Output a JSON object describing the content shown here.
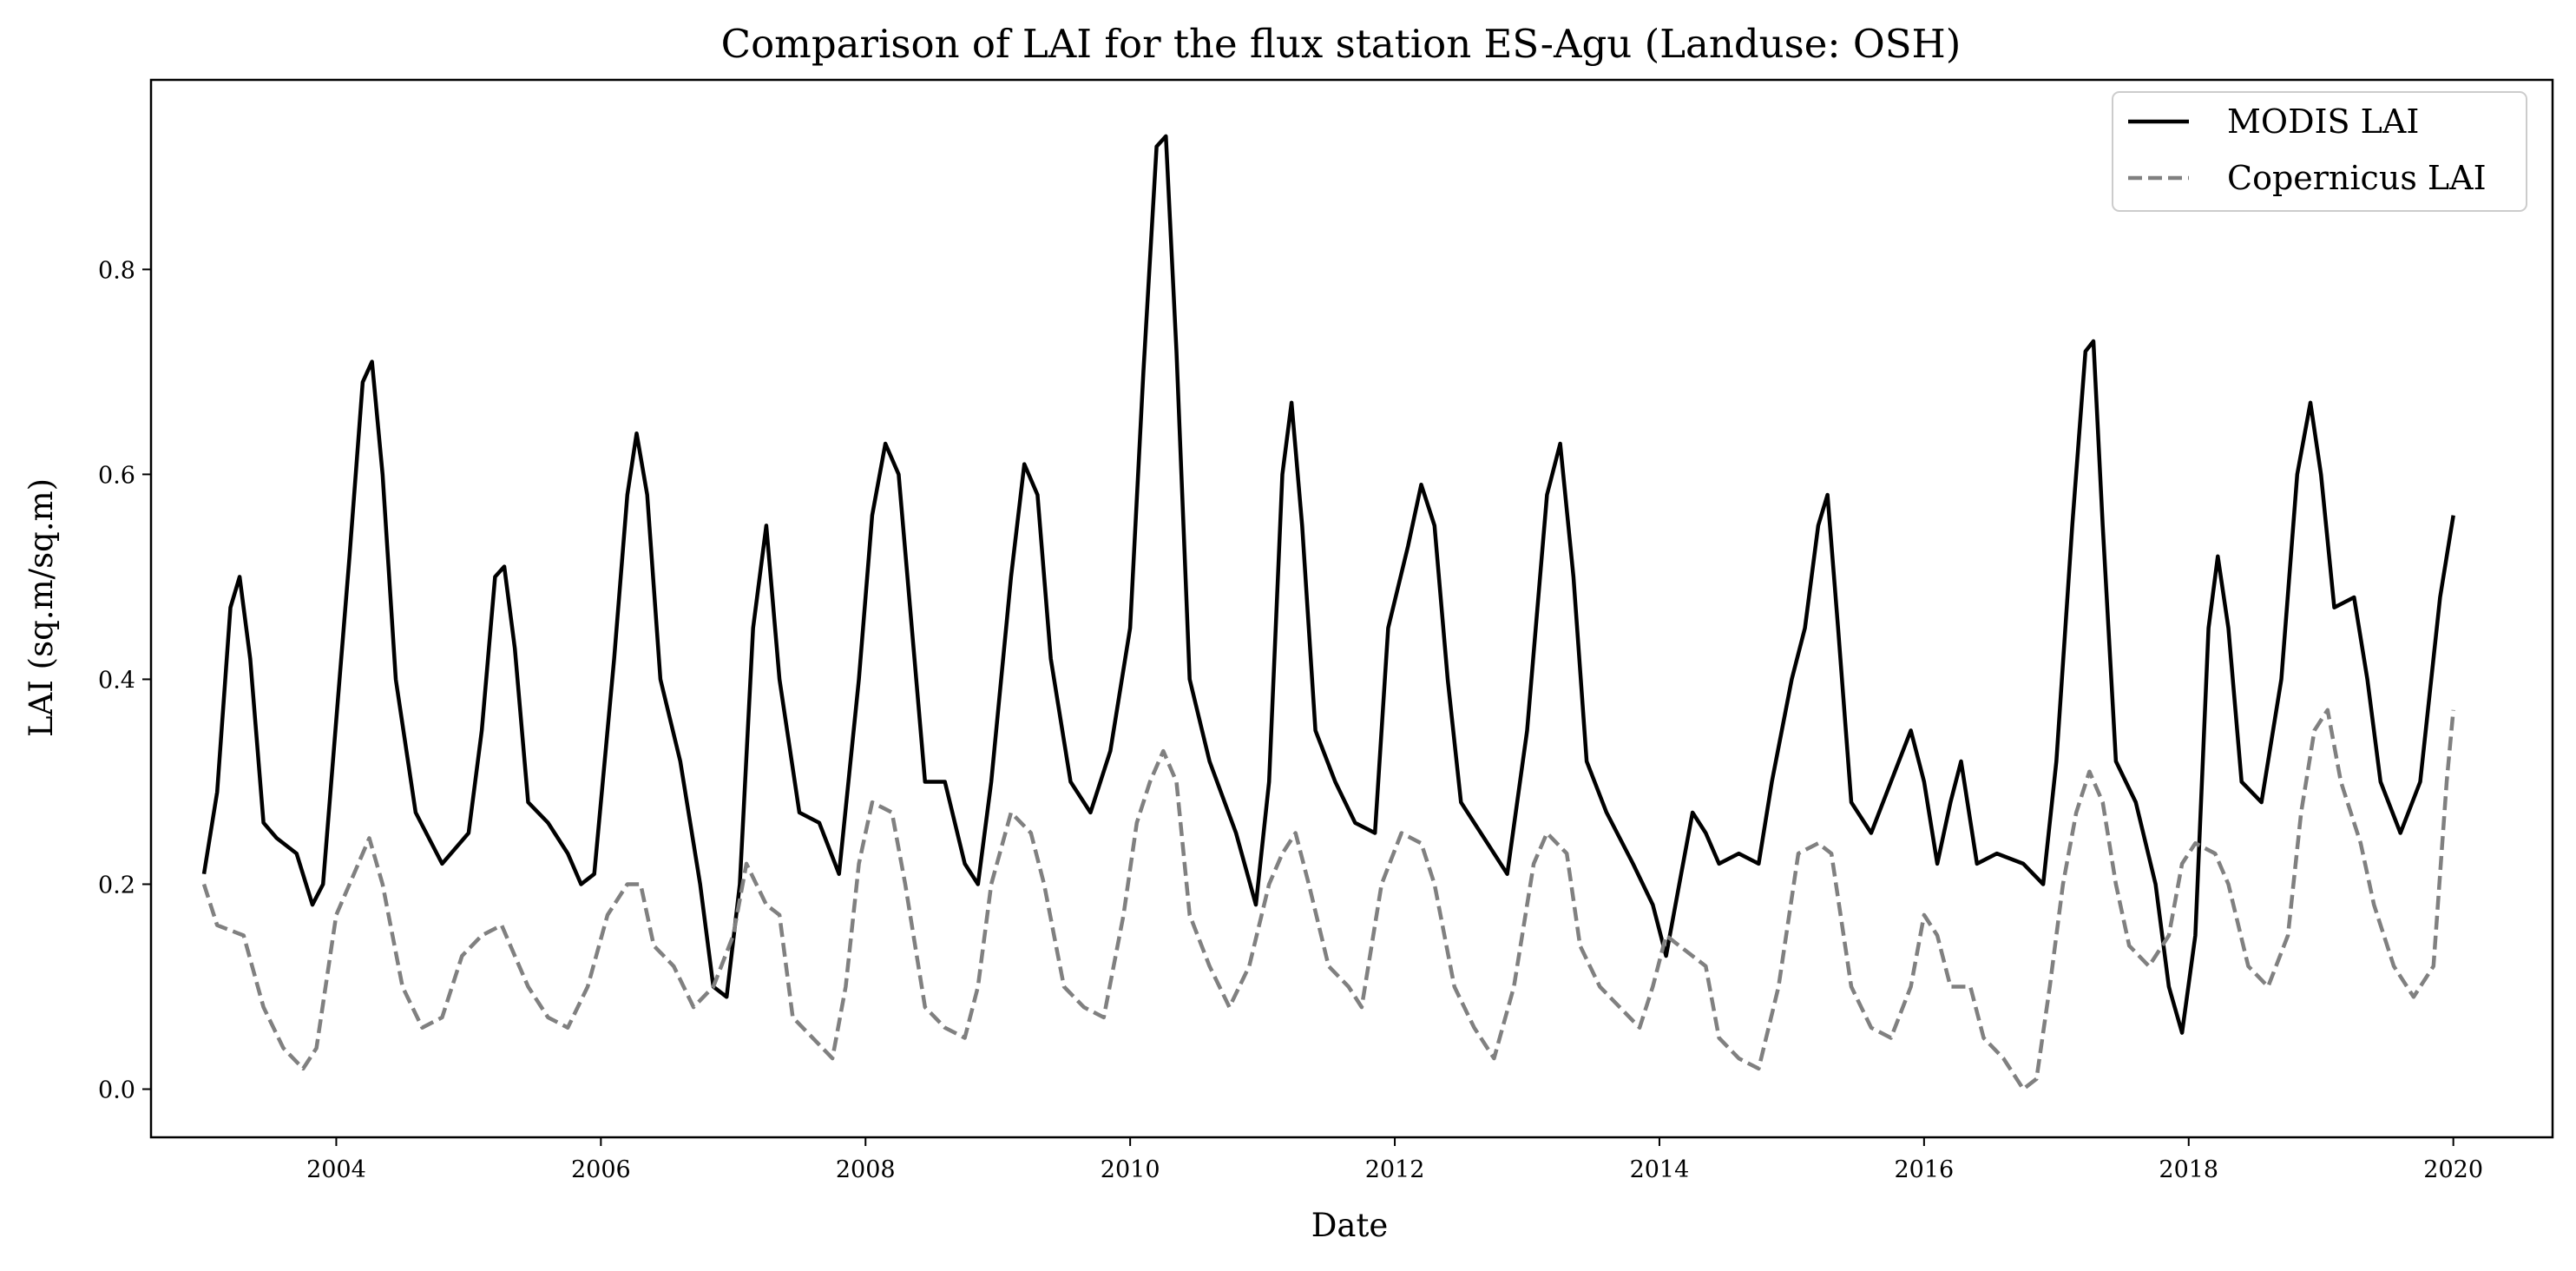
{
  "chart_data": {
    "type": "line",
    "title": "Comparison of LAI for the flux station ES-Agu (Landuse: OSH)",
    "xlabel": "Date",
    "ylabel": "LAI (sq.m/sq.m)",
    "x_axis": "date",
    "xlim": [
      2002.6,
      2020.75
    ],
    "ylim": [
      -0.047,
      0.985
    ],
    "x_ticks": [
      2004,
      2006,
      2008,
      2010,
      2012,
      2014,
      2016,
      2018,
      2020
    ],
    "y_ticks": [
      0.0,
      0.2,
      0.4,
      0.6,
      0.8
    ],
    "y_tick_labels": [
      "0.0",
      "0.2",
      "0.4",
      "0.6",
      "0.8"
    ],
    "grid": false,
    "legend_position": "top-right",
    "series": [
      {
        "name": "MODIS LAI",
        "color": "#000000",
        "style": "solid",
        "points": [
          [
            2003.0,
            0.21
          ],
          [
            2003.1,
            0.29
          ],
          [
            2003.2,
            0.47
          ],
          [
            2003.27,
            0.5
          ],
          [
            2003.35,
            0.42
          ],
          [
            2003.45,
            0.26
          ],
          [
            2003.55,
            0.245
          ],
          [
            2003.7,
            0.23
          ],
          [
            2003.82,
            0.18
          ],
          [
            2003.9,
            0.2
          ],
          [
            2004.0,
            0.36
          ],
          [
            2004.1,
            0.52
          ],
          [
            2004.2,
            0.69
          ],
          [
            2004.27,
            0.71
          ],
          [
            2004.35,
            0.6
          ],
          [
            2004.45,
            0.4
          ],
          [
            2004.6,
            0.27
          ],
          [
            2004.8,
            0.22
          ],
          [
            2005.0,
            0.25
          ],
          [
            2005.1,
            0.35
          ],
          [
            2005.2,
            0.5
          ],
          [
            2005.27,
            0.51
          ],
          [
            2005.35,
            0.43
          ],
          [
            2005.45,
            0.28
          ],
          [
            2005.6,
            0.26
          ],
          [
            2005.75,
            0.23
          ],
          [
            2005.85,
            0.2
          ],
          [
            2005.95,
            0.21
          ],
          [
            2006.1,
            0.42
          ],
          [
            2006.2,
            0.58
          ],
          [
            2006.27,
            0.64
          ],
          [
            2006.35,
            0.58
          ],
          [
            2006.45,
            0.4
          ],
          [
            2006.6,
            0.32
          ],
          [
            2006.75,
            0.2
          ],
          [
            2006.85,
            0.1
          ],
          [
            2006.95,
            0.09
          ],
          [
            2007.05,
            0.2
          ],
          [
            2007.15,
            0.45
          ],
          [
            2007.25,
            0.55
          ],
          [
            2007.35,
            0.4
          ],
          [
            2007.5,
            0.27
          ],
          [
            2007.65,
            0.26
          ],
          [
            2007.8,
            0.21
          ],
          [
            2007.95,
            0.4
          ],
          [
            2008.05,
            0.56
          ],
          [
            2008.15,
            0.63
          ],
          [
            2008.25,
            0.6
          ],
          [
            2008.35,
            0.45
          ],
          [
            2008.45,
            0.3
          ],
          [
            2008.6,
            0.3
          ],
          [
            2008.75,
            0.22
          ],
          [
            2008.85,
            0.2
          ],
          [
            2008.95,
            0.3
          ],
          [
            2009.1,
            0.5
          ],
          [
            2009.2,
            0.61
          ],
          [
            2009.3,
            0.58
          ],
          [
            2009.4,
            0.42
          ],
          [
            2009.55,
            0.3
          ],
          [
            2009.7,
            0.27
          ],
          [
            2009.85,
            0.33
          ],
          [
            2010.0,
            0.45
          ],
          [
            2010.1,
            0.7
          ],
          [
            2010.2,
            0.92
          ],
          [
            2010.27,
            0.93
          ],
          [
            2010.35,
            0.72
          ],
          [
            2010.45,
            0.4
          ],
          [
            2010.6,
            0.32
          ],
          [
            2010.8,
            0.25
          ],
          [
            2010.95,
            0.18
          ],
          [
            2011.05,
            0.3
          ],
          [
            2011.15,
            0.6
          ],
          [
            2011.22,
            0.67
          ],
          [
            2011.3,
            0.55
          ],
          [
            2011.4,
            0.35
          ],
          [
            2011.55,
            0.3
          ],
          [
            2011.7,
            0.26
          ],
          [
            2011.85,
            0.25
          ],
          [
            2011.95,
            0.45
          ],
          [
            2012.1,
            0.53
          ],
          [
            2012.2,
            0.59
          ],
          [
            2012.3,
            0.55
          ],
          [
            2012.4,
            0.4
          ],
          [
            2012.5,
            0.28
          ],
          [
            2012.7,
            0.24
          ],
          [
            2012.85,
            0.21
          ],
          [
            2013.0,
            0.35
          ],
          [
            2013.15,
            0.58
          ],
          [
            2013.25,
            0.63
          ],
          [
            2013.35,
            0.5
          ],
          [
            2013.45,
            0.32
          ],
          [
            2013.6,
            0.27
          ],
          [
            2013.8,
            0.22
          ],
          [
            2013.95,
            0.18
          ],
          [
            2014.05,
            0.13
          ],
          [
            2014.15,
            0.2
          ],
          [
            2014.25,
            0.27
          ],
          [
            2014.35,
            0.25
          ],
          [
            2014.45,
            0.22
          ],
          [
            2014.6,
            0.23
          ],
          [
            2014.75,
            0.22
          ],
          [
            2014.85,
            0.3
          ],
          [
            2015.0,
            0.4
          ],
          [
            2015.1,
            0.45
          ],
          [
            2015.2,
            0.55
          ],
          [
            2015.27,
            0.58
          ],
          [
            2015.35,
            0.45
          ],
          [
            2015.45,
            0.28
          ],
          [
            2015.6,
            0.25
          ],
          [
            2015.75,
            0.3
          ],
          [
            2015.9,
            0.35
          ],
          [
            2016.0,
            0.3
          ],
          [
            2016.1,
            0.22
          ],
          [
            2016.2,
            0.28
          ],
          [
            2016.28,
            0.32
          ],
          [
            2016.4,
            0.22
          ],
          [
            2016.55,
            0.23
          ],
          [
            2016.75,
            0.22
          ],
          [
            2016.9,
            0.2
          ],
          [
            2017.0,
            0.32
          ],
          [
            2017.12,
            0.55
          ],
          [
            2017.22,
            0.72
          ],
          [
            2017.28,
            0.73
          ],
          [
            2017.35,
            0.55
          ],
          [
            2017.45,
            0.32
          ],
          [
            2017.6,
            0.28
          ],
          [
            2017.75,
            0.2
          ],
          [
            2017.85,
            0.1
          ],
          [
            2017.95,
            0.055
          ],
          [
            2018.05,
            0.15
          ],
          [
            2018.15,
            0.45
          ],
          [
            2018.22,
            0.52
          ],
          [
            2018.3,
            0.45
          ],
          [
            2018.4,
            0.3
          ],
          [
            2018.55,
            0.28
          ],
          [
            2018.7,
            0.4
          ],
          [
            2018.82,
            0.6
          ],
          [
            2018.92,
            0.67
          ],
          [
            2019.0,
            0.6
          ],
          [
            2019.1,
            0.47
          ],
          [
            2019.25,
            0.48
          ],
          [
            2019.35,
            0.4
          ],
          [
            2019.45,
            0.3
          ],
          [
            2019.6,
            0.25
          ],
          [
            2019.75,
            0.3
          ],
          [
            2019.9,
            0.48
          ],
          [
            2020.0,
            0.56
          ]
        ]
      },
      {
        "name": "Copernicus LAI",
        "color": "#808080",
        "style": "dashed",
        "points": [
          [
            2003.0,
            0.2
          ],
          [
            2003.1,
            0.16
          ],
          [
            2003.3,
            0.15
          ],
          [
            2003.45,
            0.08
          ],
          [
            2003.6,
            0.04
          ],
          [
            2003.75,
            0.02
          ],
          [
            2003.85,
            0.04
          ],
          [
            2004.0,
            0.17
          ],
          [
            2004.1,
            0.2
          ],
          [
            2004.25,
            0.245
          ],
          [
            2004.35,
            0.2
          ],
          [
            2004.5,
            0.1
          ],
          [
            2004.65,
            0.06
          ],
          [
            2004.8,
            0.07
          ],
          [
            2004.95,
            0.13
          ],
          [
            2005.1,
            0.15
          ],
          [
            2005.25,
            0.16
          ],
          [
            2005.35,
            0.13
          ],
          [
            2005.45,
            0.1
          ],
          [
            2005.6,
            0.07
          ],
          [
            2005.75,
            0.06
          ],
          [
            2005.9,
            0.1
          ],
          [
            2006.05,
            0.17
          ],
          [
            2006.2,
            0.2
          ],
          [
            2006.3,
            0.2
          ],
          [
            2006.4,
            0.14
          ],
          [
            2006.55,
            0.12
          ],
          [
            2006.7,
            0.08
          ],
          [
            2006.85,
            0.1
          ],
          [
            2007.0,
            0.15
          ],
          [
            2007.1,
            0.22
          ],
          [
            2007.25,
            0.18
          ],
          [
            2007.35,
            0.17
          ],
          [
            2007.45,
            0.07
          ],
          [
            2007.6,
            0.05
          ],
          [
            2007.75,
            0.03
          ],
          [
            2007.85,
            0.1
          ],
          [
            2007.95,
            0.22
          ],
          [
            2008.05,
            0.28
          ],
          [
            2008.2,
            0.27
          ],
          [
            2008.3,
            0.2
          ],
          [
            2008.45,
            0.08
          ],
          [
            2008.6,
            0.06
          ],
          [
            2008.75,
            0.05
          ],
          [
            2008.85,
            0.1
          ],
          [
            2008.95,
            0.2
          ],
          [
            2009.1,
            0.27
          ],
          [
            2009.25,
            0.25
          ],
          [
            2009.35,
            0.2
          ],
          [
            2009.5,
            0.1
          ],
          [
            2009.65,
            0.08
          ],
          [
            2009.8,
            0.07
          ],
          [
            2009.95,
            0.17
          ],
          [
            2010.05,
            0.26
          ],
          [
            2010.15,
            0.3
          ],
          [
            2010.25,
            0.33
          ],
          [
            2010.35,
            0.3
          ],
          [
            2010.45,
            0.17
          ],
          [
            2010.6,
            0.12
          ],
          [
            2010.75,
            0.08
          ],
          [
            2010.9,
            0.12
          ],
          [
            2011.05,
            0.2
          ],
          [
            2011.15,
            0.23
          ],
          [
            2011.25,
            0.25
          ],
          [
            2011.35,
            0.2
          ],
          [
            2011.5,
            0.12
          ],
          [
            2011.65,
            0.1
          ],
          [
            2011.75,
            0.08
          ],
          [
            2011.9,
            0.2
          ],
          [
            2012.05,
            0.25
          ],
          [
            2012.2,
            0.24
          ],
          [
            2012.3,
            0.2
          ],
          [
            2012.45,
            0.1
          ],
          [
            2012.6,
            0.06
          ],
          [
            2012.75,
            0.03
          ],
          [
            2012.9,
            0.1
          ],
          [
            2013.05,
            0.22
          ],
          [
            2013.15,
            0.25
          ],
          [
            2013.3,
            0.23
          ],
          [
            2013.4,
            0.14
          ],
          [
            2013.55,
            0.1
          ],
          [
            2013.7,
            0.08
          ],
          [
            2013.85,
            0.06
          ],
          [
            2013.95,
            0.1
          ],
          [
            2014.05,
            0.15
          ],
          [
            2014.15,
            0.14
          ],
          [
            2014.35,
            0.12
          ],
          [
            2014.45,
            0.05
          ],
          [
            2014.6,
            0.03
          ],
          [
            2014.75,
            0.02
          ],
          [
            2014.9,
            0.1
          ],
          [
            2015.05,
            0.23
          ],
          [
            2015.2,
            0.24
          ],
          [
            2015.3,
            0.23
          ],
          [
            2015.45,
            0.1
          ],
          [
            2015.6,
            0.06
          ],
          [
            2015.75,
            0.05
          ],
          [
            2015.9,
            0.1
          ],
          [
            2016.0,
            0.17
          ],
          [
            2016.1,
            0.15
          ],
          [
            2016.2,
            0.1
          ],
          [
            2016.35,
            0.1
          ],
          [
            2016.45,
            0.05
          ],
          [
            2016.6,
            0.03
          ],
          [
            2016.75,
            0.0
          ],
          [
            2016.85,
            0.01
          ],
          [
            2016.95,
            0.1
          ],
          [
            2017.05,
            0.2
          ],
          [
            2017.15,
            0.27
          ],
          [
            2017.25,
            0.31
          ],
          [
            2017.35,
            0.28
          ],
          [
            2017.45,
            0.2
          ],
          [
            2017.55,
            0.14
          ],
          [
            2017.7,
            0.12
          ],
          [
            2017.85,
            0.15
          ],
          [
            2017.95,
            0.22
          ],
          [
            2018.05,
            0.24
          ],
          [
            2018.2,
            0.23
          ],
          [
            2018.3,
            0.2
          ],
          [
            2018.45,
            0.12
          ],
          [
            2018.6,
            0.1
          ],
          [
            2018.75,
            0.15
          ],
          [
            2018.85,
            0.27
          ],
          [
            2018.95,
            0.35
          ],
          [
            2019.05,
            0.37
          ],
          [
            2019.15,
            0.3
          ],
          [
            2019.3,
            0.24
          ],
          [
            2019.4,
            0.18
          ],
          [
            2019.55,
            0.12
          ],
          [
            2019.7,
            0.09
          ],
          [
            2019.85,
            0.12
          ],
          [
            2019.95,
            0.3
          ],
          [
            2020.0,
            0.37
          ]
        ]
      }
    ]
  }
}
